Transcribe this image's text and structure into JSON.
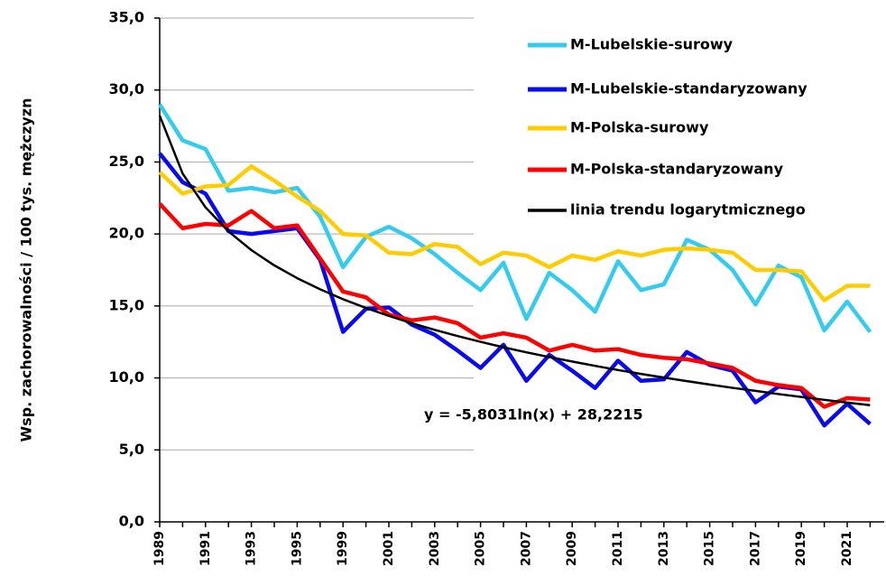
{
  "chart_data": {
    "type": "line",
    "y_label": "Wsp. zachorowalności / 100 tys. mężczyzn",
    "annotation": "y = -5,8031ln(x) + 28,2215",
    "categories": [
      "1989",
      null,
      "1991",
      null,
      "1993",
      null,
      "1995",
      null,
      "1999",
      null,
      "2001",
      null,
      "2003",
      null,
      "2005",
      null,
      "2007",
      null,
      "2009",
      null,
      "2011",
      null,
      "2013",
      null,
      "2015",
      null,
      "2017",
      null,
      "2019",
      null,
      "2021",
      null
    ],
    "series": [
      {
        "name": "M-Lubelskie-surowy",
        "color": "#33ccee",
        "values": [
          29.0,
          26.5,
          25.9,
          23.0,
          23.2,
          22.9,
          23.2,
          21.2,
          17.7,
          19.8,
          20.5,
          19.7,
          18.6,
          17.3,
          16.1,
          18.0,
          14.1,
          17.3,
          16.1,
          14.6,
          18.1,
          16.1,
          16.5,
          19.6,
          18.9,
          17.5,
          15.1,
          17.8,
          17.0,
          13.3,
          15.3,
          13.2
        ]
      },
      {
        "name": "M-Lubelskie-standaryzowany",
        "color": "#0a0aee",
        "values": [
          25.6,
          23.6,
          22.8,
          20.2,
          20.0,
          20.2,
          20.4,
          18.2,
          13.2,
          14.8,
          14.9,
          13.7,
          13.0,
          11.9,
          10.7,
          12.3,
          9.8,
          11.6,
          10.5,
          9.3,
          11.2,
          9.8,
          9.9,
          11.8,
          10.9,
          10.5,
          8.3,
          9.4,
          9.2,
          6.7,
          8.2,
          6.8
        ]
      },
      {
        "name": "M-Polska-surowy",
        "color": "#ffcc00",
        "values": [
          24.3,
          22.8,
          23.3,
          23.4,
          24.7,
          23.7,
          22.6,
          21.6,
          20.0,
          19.9,
          18.7,
          18.6,
          19.3,
          19.1,
          17.9,
          18.7,
          18.5,
          17.7,
          18.5,
          18.2,
          18.8,
          18.5,
          18.9,
          19.0,
          18.9,
          18.7,
          17.5,
          17.5,
          17.4,
          15.4,
          16.4,
          16.4
        ]
      },
      {
        "name": "M-Polska-standaryzowany",
        "color": "#ff0000",
        "values": [
          22.1,
          20.4,
          20.7,
          20.6,
          21.6,
          20.4,
          20.6,
          18.3,
          16.0,
          15.6,
          14.4,
          14.0,
          14.2,
          13.8,
          12.8,
          13.1,
          12.8,
          11.9,
          12.3,
          11.9,
          12.0,
          11.6,
          11.4,
          11.3,
          11.0,
          10.7,
          9.8,
          9.5,
          9.3,
          8.0,
          8.6,
          8.5
        ]
      },
      {
        "name": "linia trendu logarytmicznego",
        "color": "#000000",
        "values": [
          28.22,
          24.2,
          21.85,
          20.18,
          18.88,
          17.82,
          16.93,
          16.16,
          15.47,
          14.86,
          14.31,
          13.8,
          13.34,
          12.91,
          12.51,
          12.13,
          11.78,
          11.45,
          11.14,
          10.84,
          10.55,
          10.28,
          10.03,
          9.78,
          9.54,
          9.31,
          9.1,
          8.88,
          8.68,
          8.48,
          8.29,
          8.11
        ]
      }
    ],
    "ylim": [
      0,
      35
    ],
    "yticks": [
      {
        "value": 0,
        "label": "0,0"
      },
      {
        "value": 5,
        "label": "5,0"
      },
      {
        "value": 10,
        "label": "10,0"
      },
      {
        "value": 15,
        "label": "15,0"
      },
      {
        "value": 20,
        "label": "20,0"
      },
      {
        "value": 25,
        "label": "25,0"
      },
      {
        "value": 30,
        "label": "30,0"
      },
      {
        "value": 35,
        "label": "35,0"
      }
    ],
    "grid": true,
    "legend": "upper right"
  }
}
